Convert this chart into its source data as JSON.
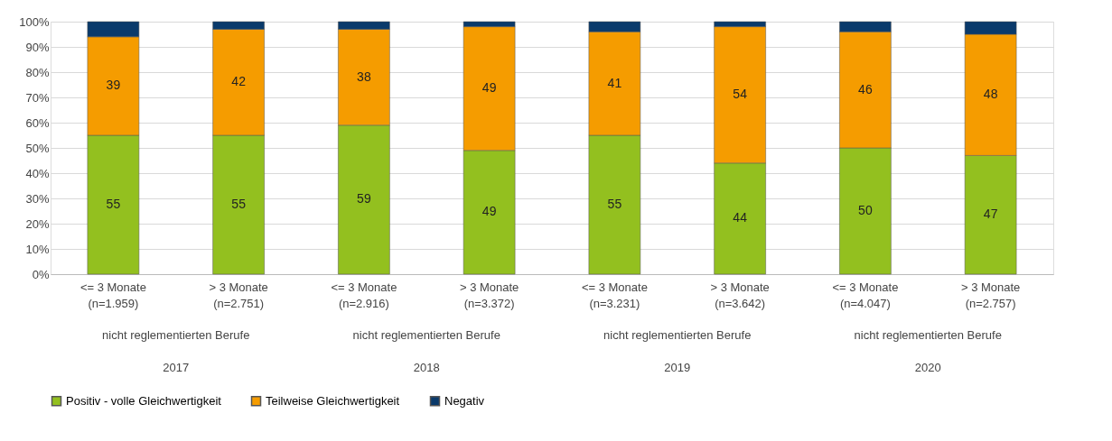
{
  "chart_data": {
    "type": "bar",
    "stacked": true,
    "categories": [
      "<= 3 Monate\n(n=1.959)",
      "> 3 Monate\n(n=2.751)",
      "<= 3 Monate\n(n=2.916)",
      "> 3 Monate\n(n=3.372)",
      "<= 3 Monate\n(n=3.231)",
      "> 3 Monate\n(n=3.642)",
      "<= 3 Monate\n(n=4.047)",
      "> 3 Monate\n(n=2.757)"
    ],
    "series": [
      {
        "name": "Positiv - volle Gleichwertigkeit",
        "color": "#93c01f",
        "values": [
          55,
          55,
          59,
          49,
          55,
          44,
          50,
          47
        ],
        "value_labels": [
          "55",
          "55",
          "59",
          "49",
          "55",
          "44",
          "50",
          "47"
        ]
      },
      {
        "name": "Teilweise Gleichwertigkeit",
        "color": "#f59c00",
        "values": [
          39,
          42,
          38,
          49,
          41,
          54,
          46,
          48
        ],
        "value_labels": [
          "39",
          "42",
          "38",
          "49",
          "41",
          "54",
          "46",
          "48"
        ]
      },
      {
        "name": "Negativ",
        "color": "#0a3a6b",
        "values": [
          6,
          3,
          3,
          2,
          4,
          2,
          4,
          5
        ]
      }
    ],
    "ylim": [
      0,
      100
    ],
    "yticks": [
      {
        "value": 0,
        "label": "0%"
      },
      {
        "value": 10,
        "label": "10%"
      },
      {
        "value": 20,
        "label": "20%"
      },
      {
        "value": 30,
        "label": "30%"
      },
      {
        "value": 40,
        "label": "40%"
      },
      {
        "value": 50,
        "label": "50%"
      },
      {
        "value": 60,
        "label": "60%"
      },
      {
        "value": 70,
        "label": "70%"
      },
      {
        "value": 80,
        "label": "80%"
      },
      {
        "value": 90,
        "label": "90%"
      },
      {
        "value": 100,
        "label": "100%"
      }
    ],
    "grid": "y",
    "legend": "bottom",
    "annotations": [
      "nicht reglementierten Berufe",
      "nicht reglementierten Berufe",
      "nicht reglementierten Berufe",
      "nicht reglementierten Berufe",
      "2017",
      "2018",
      "2019",
      "2020"
    ]
  }
}
